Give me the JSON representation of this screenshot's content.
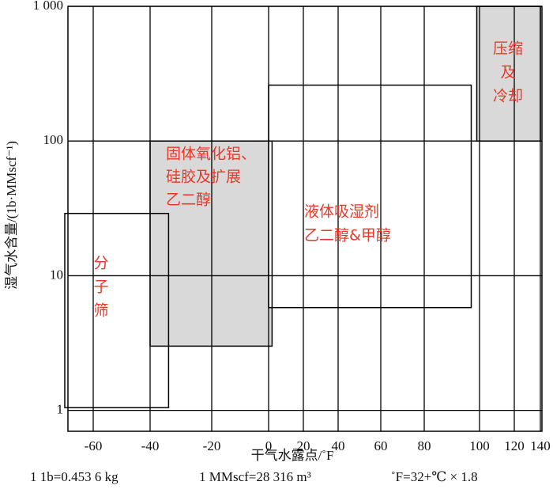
{
  "chart_data": {
    "type": "region",
    "y_label": "湿气水含量/(1b·MMscf⁻¹)",
    "x_label": "干气水露点/˚F",
    "notes": [
      "1 1b=0.453 6 kg",
      "1 MMscf=28 316 m³",
      "˚F=32+℃ × 1.8"
    ],
    "ylog": true,
    "ylim": [
      0.7,
      1000
    ],
    "yticks": [
      1,
      10,
      100,
      {
        "value": 1000,
        "label": "1 000"
      }
    ],
    "xlim": [
      -70,
      140
    ],
    "xticks": [
      -60,
      -40,
      -20,
      0,
      20,
      40,
      60,
      80,
      100,
      120,
      140
    ],
    "grid": true,
    "label_color": "#e8382a",
    "regions": [
      {
        "label": [
          "分",
          "子",
          "筛"
        ],
        "x": [
          -70,
          -34
        ],
        "y": [
          1.05,
          29
        ],
        "color": "#ffffff"
      },
      {
        "label": [
          "固体氧化铝、",
          "硅胶及扩展",
          "乙二醇"
        ],
        "x": [
          -40,
          2
        ],
        "y": [
          3,
          100
        ],
        "color": "#d9d9d9"
      },
      {
        "label": [
          "液体吸湿剂",
          "乙二醇&甲醇"
        ],
        "x": [
          0,
          97
        ],
        "y": [
          5.8,
          260
        ],
        "color": "#ffffff"
      },
      {
        "label": [
          "压缩",
          "及",
          "冷却"
        ],
        "x": [
          99,
          140
        ],
        "y": [
          100,
          1000
        ],
        "color": "#d9d9d9"
      }
    ]
  }
}
